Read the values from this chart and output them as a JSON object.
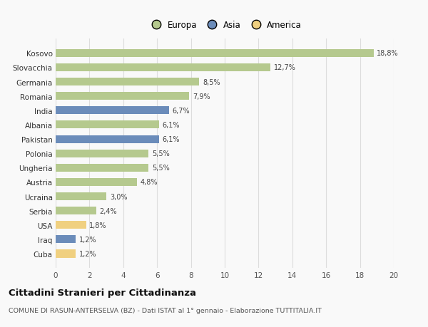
{
  "categories": [
    "Kosovo",
    "Slovacchia",
    "Germania",
    "Romania",
    "India",
    "Albania",
    "Pakistan",
    "Polonia",
    "Ungheria",
    "Austria",
    "Ucraina",
    "Serbia",
    "USA",
    "Iraq",
    "Cuba"
  ],
  "values": [
    18.8,
    12.7,
    8.5,
    7.9,
    6.7,
    6.1,
    6.1,
    5.5,
    5.5,
    4.8,
    3.0,
    2.4,
    1.8,
    1.2,
    1.2
  ],
  "labels": [
    "18,8%",
    "12,7%",
    "8,5%",
    "7,9%",
    "6,7%",
    "6,1%",
    "6,1%",
    "5,5%",
    "5,5%",
    "4,8%",
    "3,0%",
    "2,4%",
    "1,8%",
    "1,2%",
    "1,2%"
  ],
  "colors": [
    "#b5c98e",
    "#b5c98e",
    "#b5c98e",
    "#b5c98e",
    "#6b8cba",
    "#b5c98e",
    "#6b8cba",
    "#b5c98e",
    "#b5c98e",
    "#b5c98e",
    "#b5c98e",
    "#b5c98e",
    "#f0d080",
    "#6b8cba",
    "#f0d080"
  ],
  "legend_labels": [
    "Europa",
    "Asia",
    "America"
  ],
  "legend_colors": [
    "#b5c98e",
    "#6b8cba",
    "#f0d080"
  ],
  "title": "Cittadini Stranieri per Cittadinanza",
  "subtitle": "COMUNE DI RASUN-ANTERSELVA (BZ) - Dati ISTAT al 1° gennaio - Elaborazione TUTTITALIA.IT",
  "xlim": [
    0,
    20
  ],
  "xticks": [
    0,
    2,
    4,
    6,
    8,
    10,
    12,
    14,
    16,
    18,
    20
  ],
  "background_color": "#f9f9f9",
  "grid_color": "#dddddd"
}
